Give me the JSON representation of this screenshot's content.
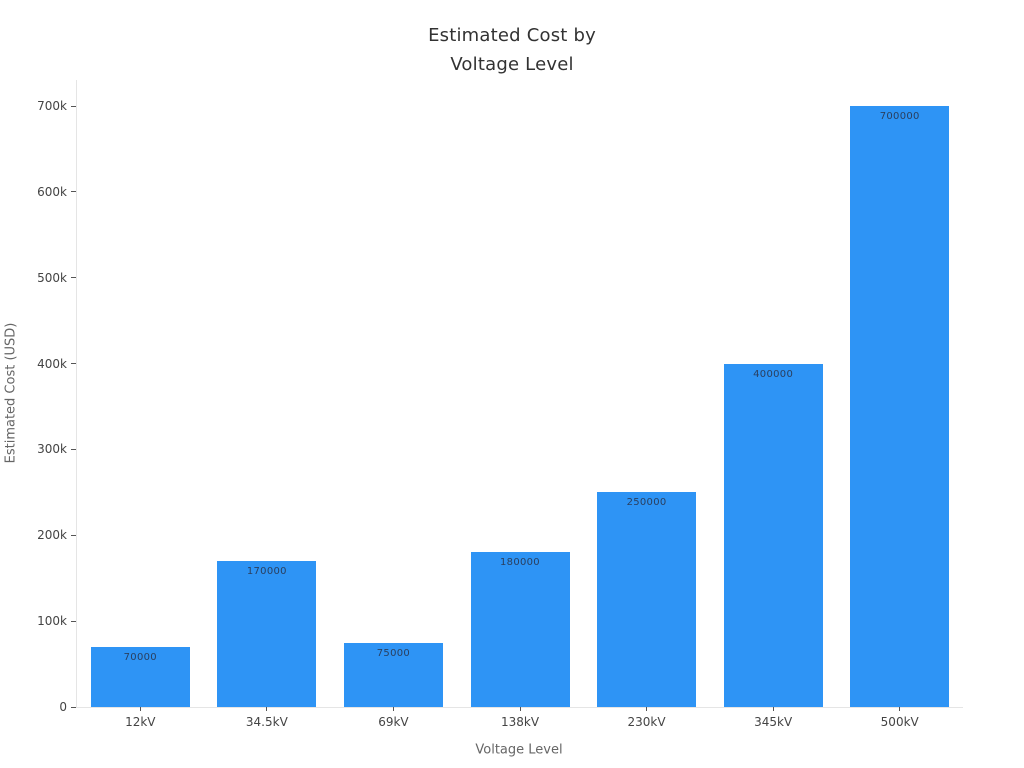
{
  "chart_data": {
    "type": "bar",
    "title": "Estimated Cost by Voltage Level",
    "title_line1": "Estimated Cost by",
    "title_line2": "Voltage Level",
    "xlabel": "Voltage Level",
    "ylabel": "Estimated Cost (USD)",
    "categories": [
      "12kV",
      "34.5kV",
      "69kV",
      "138kV",
      "230kV",
      "345kV",
      "500kV"
    ],
    "values": [
      70000,
      170000,
      75000,
      180000,
      250000,
      400000,
      700000
    ],
    "bar_labels": [
      "70000",
      "170000",
      "75000",
      "180000",
      "250000",
      "400000",
      "700000"
    ],
    "ylim": [
      0,
      700000
    ],
    "yticks": [
      {
        "label": "0",
        "value": 0
      },
      {
        "label": "100k",
        "value": 100000
      },
      {
        "label": "200k",
        "value": 200000
      },
      {
        "label": "300k",
        "value": 300000
      },
      {
        "label": "400k",
        "value": 400000
      },
      {
        "label": "500k",
        "value": 500000
      },
      {
        "label": "600k",
        "value": 600000
      },
      {
        "label": "700k",
        "value": 700000
      },
      {
        "label": "",
        "value": 730000
      }
    ],
    "grid": false,
    "legend_position": "none",
    "colors": {
      "bar_fill": "#2e94f5",
      "bar_label": "#2a3f5f",
      "tick_label": "#444444",
      "axis_title": "#666666",
      "title": "#323232",
      "axis_line": "#e5e5e5",
      "tick_mark": "#555555",
      "background": "#ffffff"
    }
  }
}
